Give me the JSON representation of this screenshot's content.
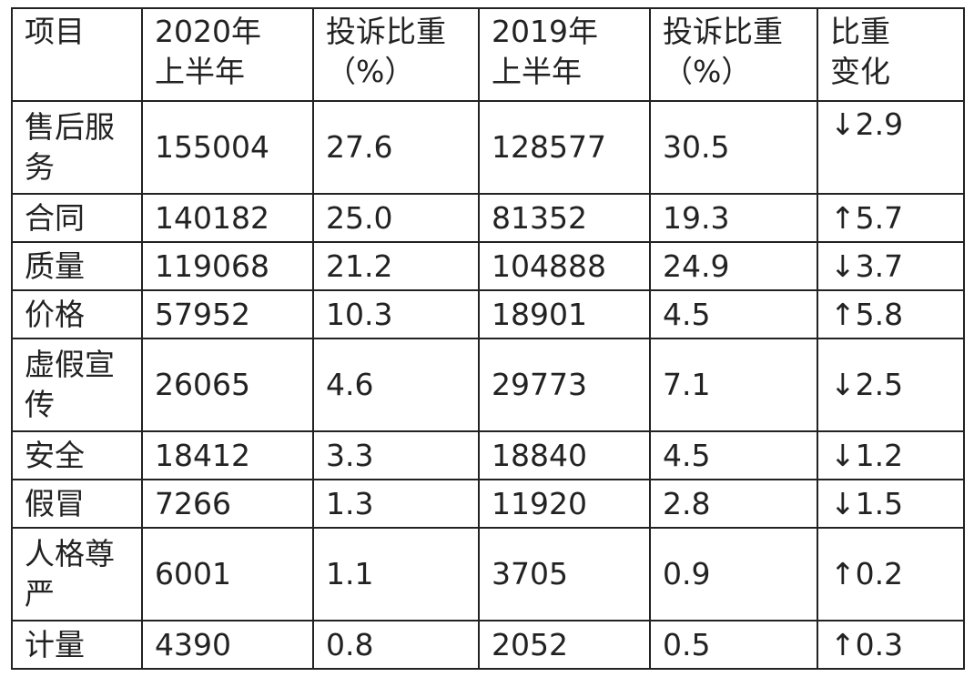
{
  "table": {
    "header": [
      [
        "项目"
      ],
      [
        "2020年",
        "上半年"
      ],
      [
        "投诉比重",
        "（%）"
      ],
      [
        "2019年",
        "上半年"
      ],
      [
        "投诉比重",
        "（%）"
      ],
      [
        "比重",
        "变化"
      ]
    ],
    "rows": [
      [
        "售后服务",
        "155004",
        "27.6",
        "128577",
        "30.5",
        "↓2.9"
      ],
      [
        "合同",
        "140182",
        "25.0",
        "81352",
        "19.3",
        "↑5.7"
      ],
      [
        "质量",
        "119068",
        "21.2",
        "104888",
        "24.9",
        "↓3.7"
      ],
      [
        "价格",
        "57952",
        "10.3",
        "18901",
        "4.5",
        "↑5.8"
      ],
      [
        "虚假宣传",
        "26065",
        "4.6",
        "29773",
        "7.1",
        "↓2.5"
      ],
      [
        "安全",
        "18412",
        "3.3",
        "18840",
        "4.5",
        "↓1.2"
      ],
      [
        "假冒",
        "7266",
        "1.3",
        "11920",
        "2.8",
        "↓1.5"
      ],
      [
        "人格尊严",
        "6001",
        "1.1",
        "3705",
        "0.9",
        "↑0.2"
      ],
      [
        "计量",
        "4390",
        "0.8",
        "2052",
        "0.5",
        "↑0.3"
      ]
    ]
  }
}
